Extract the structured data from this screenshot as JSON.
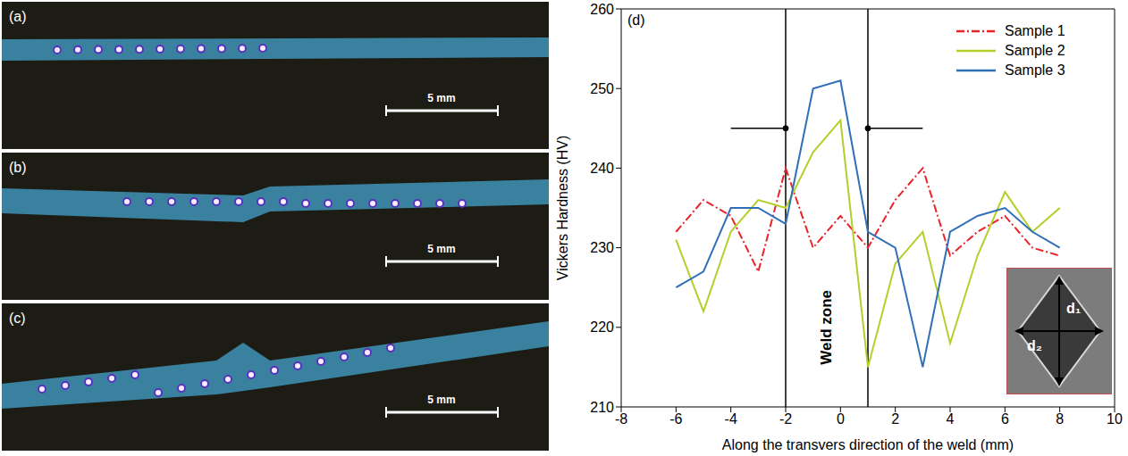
{
  "panels": [
    {
      "label": "(a)",
      "scale_bar": "5 mm"
    },
    {
      "label": "(b)",
      "scale_bar": "5 mm"
    },
    {
      "label": "(c)",
      "scale_bar": "5 mm"
    }
  ],
  "chart_data": {
    "type": "line",
    "panel_label": "(d)",
    "x_label": "Along the transvers direction of the weld (mm)",
    "y_label": "Vickers Hardness (HV)",
    "x": [
      -6,
      -5,
      -4,
      -3,
      -2,
      -1,
      0,
      1,
      2,
      3,
      4,
      5,
      6,
      7,
      8
    ],
    "xlim": [
      -8,
      10
    ],
    "xticks": [
      -8,
      -6,
      -4,
      -2,
      0,
      2,
      4,
      6,
      8,
      10
    ],
    "ylim": [
      210,
      260
    ],
    "yticks": [
      210,
      220,
      230,
      240,
      250,
      260
    ],
    "legend": "top right",
    "series": [
      {
        "name": "Sample 1",
        "color": "#e8232a",
        "line_style": "dashdot",
        "values": [
          232,
          236,
          234,
          227,
          240,
          230,
          234,
          230,
          236,
          240,
          229,
          232,
          234,
          230,
          229
        ]
      },
      {
        "name": "Sample 2",
        "color": "#b4cf2a",
        "line_style": "solid",
        "values": [
          231,
          222,
          232,
          236,
          235,
          242,
          246,
          215,
          228,
          232,
          218,
          229,
          237,
          232,
          235
        ]
      },
      {
        "name": "Sample 3",
        "color": "#2f6fba",
        "line_style": "solid",
        "values": [
          225,
          227,
          235,
          235,
          233,
          250,
          251,
          232,
          230,
          215,
          232,
          234,
          235,
          232,
          230
        ]
      }
    ],
    "weld_zone": [
      -2,
      1
    ],
    "arrows": [
      {
        "from": [
          -4,
          245
        ],
        "to": [
          -2,
          245
        ]
      },
      {
        "from": [
          3,
          245
        ],
        "to": [
          1,
          245
        ]
      }
    ],
    "annotations": [
      {
        "text": "Weld zone",
        "x": -0.5,
        "y": 220
      }
    ],
    "inset_labels": [
      "d₁",
      "d₂"
    ]
  }
}
